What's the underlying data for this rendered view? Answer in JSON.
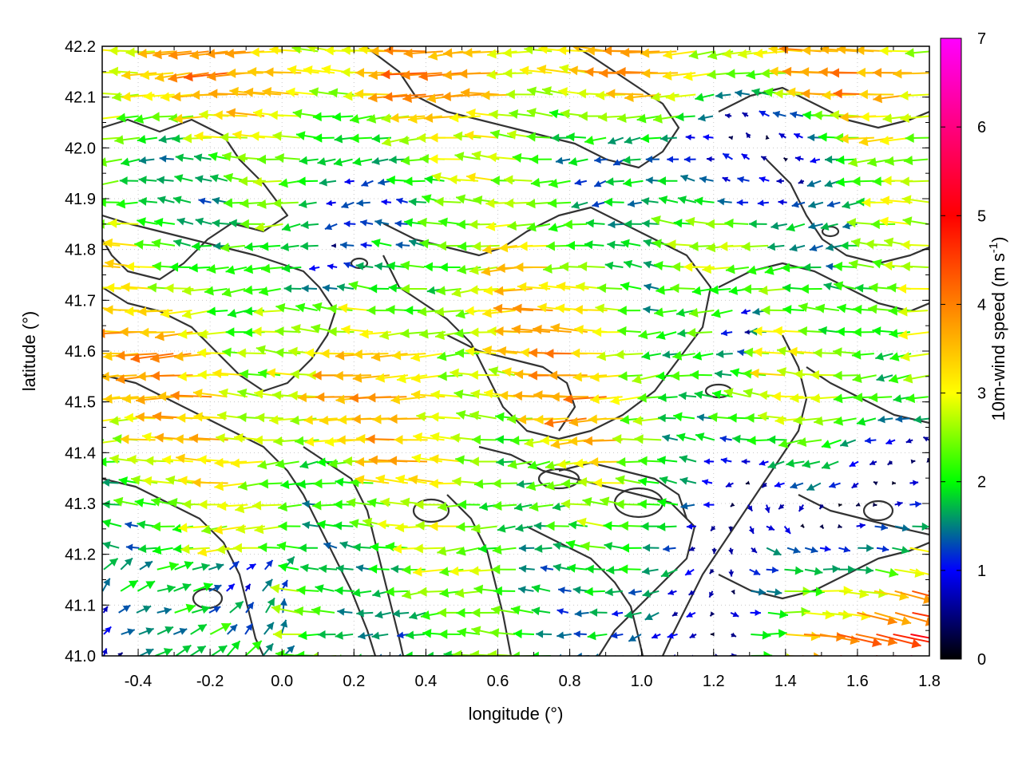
{
  "chart_data": {
    "type": "quiver",
    "xlabel": "longitude (°)",
    "ylabel": "latitude (°)",
    "xlim": [
      -0.5,
      1.8
    ],
    "ylim": [
      41.0,
      42.2
    ],
    "x_ticks": [
      "-0.4",
      "-0.2",
      "0.0",
      "0.2",
      "0.4",
      "0.6",
      "0.8",
      "1.0",
      "1.2",
      "1.4",
      "1.6",
      "1.8"
    ],
    "y_ticks": [
      "41.0",
      "41.1",
      "41.2",
      "41.3",
      "41.4",
      "41.5",
      "41.6",
      "41.7",
      "41.8",
      "41.9",
      "42.0",
      "42.1",
      "42.2"
    ],
    "grid": true,
    "colorbar": {
      "label_main": "10m-wind speed (m s",
      "label_sup": "-1",
      "label_close": ")",
      "range": [
        0,
        7
      ],
      "ticks": [
        "0",
        "1",
        "2",
        "3",
        "4",
        "5",
        "6",
        "7"
      ],
      "colors": [
        "#000000",
        "#0000ff",
        "#00ff00",
        "#ffff00",
        "#ff8000",
        "#ff0000",
        "#ff00ff"
      ]
    },
    "contour_color": "#333333",
    "note": "wind field sampled on a regular grid; vector values approximated from the image"
  }
}
